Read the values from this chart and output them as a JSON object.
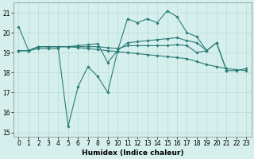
{
  "x": [
    0,
    1,
    2,
    3,
    4,
    5,
    6,
    7,
    8,
    9,
    10,
    11,
    12,
    13,
    14,
    15,
    16,
    17,
    18,
    19,
    20,
    21,
    22,
    23
  ],
  "line1": [
    20.3,
    19.1,
    19.2,
    19.2,
    19.2,
    15.3,
    17.3,
    18.3,
    17.8,
    17.0,
    19.1,
    20.7,
    20.5,
    20.7,
    20.5,
    21.1,
    20.8,
    20.0,
    19.8,
    19.1,
    19.5,
    18.1,
    18.1,
    18.2
  ],
  "line2": [
    19.1,
    19.1,
    19.3,
    19.3,
    19.3,
    19.3,
    19.35,
    19.4,
    19.45,
    18.5,
    19.1,
    19.5,
    19.55,
    19.6,
    19.65,
    19.7,
    19.75,
    19.6,
    19.5,
    19.1,
    19.5,
    18.1,
    null,
    null
  ],
  "line3": [
    19.1,
    19.1,
    19.3,
    19.3,
    19.3,
    19.3,
    19.25,
    19.2,
    19.15,
    19.1,
    19.05,
    19.0,
    18.95,
    18.9,
    18.85,
    18.8,
    18.75,
    18.7,
    18.55,
    18.4,
    18.3,
    18.2,
    18.15,
    18.1
  ],
  "line4": [
    19.1,
    19.1,
    19.3,
    19.3,
    19.3,
    19.3,
    19.3,
    19.3,
    19.3,
    19.25,
    19.2,
    19.35,
    19.35,
    19.35,
    19.35,
    19.35,
    19.4,
    19.35,
    19.0,
    19.1,
    null,
    null,
    null,
    null
  ],
  "color": "#2b7b77",
  "bg_color": "#d5efed",
  "grid_color": "#b8dbd8",
  "xlabel": "Humidex (Indice chaleur)",
  "ylim": [
    14.8,
    21.5
  ],
  "yticks": [
    15,
    16,
    17,
    18,
    19,
    20,
    21
  ],
  "xlim": [
    -0.5,
    23.5
  ],
  "xticks": [
    0,
    1,
    2,
    3,
    4,
    5,
    6,
    7,
    8,
    9,
    10,
    11,
    12,
    13,
    14,
    15,
    16,
    17,
    18,
    19,
    20,
    21,
    22,
    23
  ],
  "marker": "D",
  "markersize": 1.8,
  "linewidth": 0.8,
  "figwidth": 3.2,
  "figheight": 2.0,
  "dpi": 100
}
